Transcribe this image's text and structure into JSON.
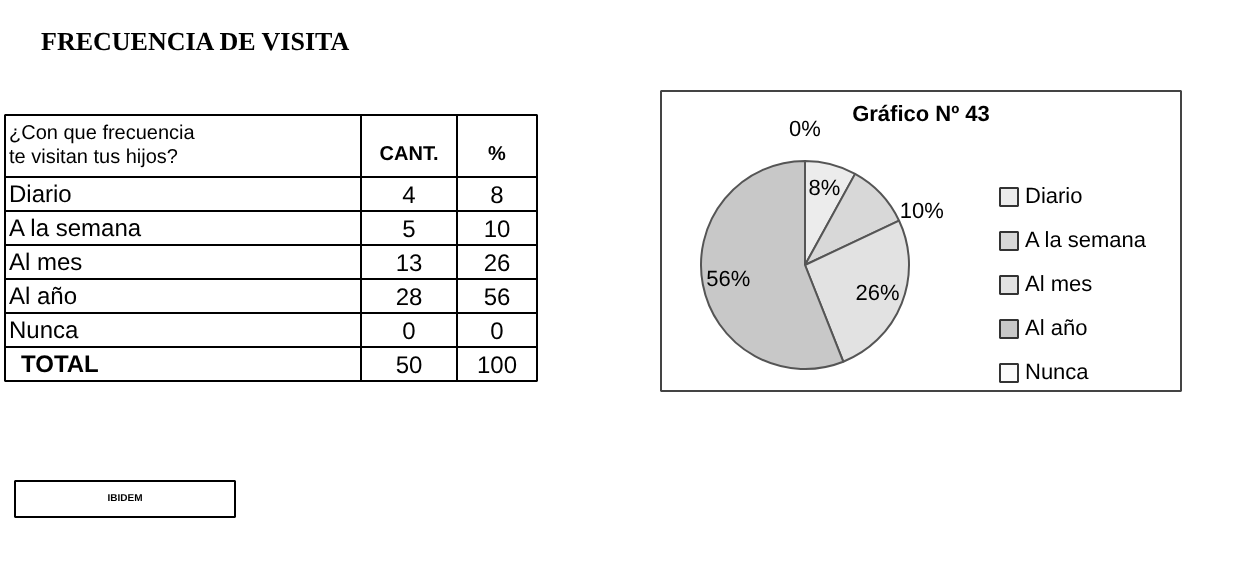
{
  "chart_data": [
    {
      "type": "other",
      "title": "FRECUENCIA DE VISITA",
      "xlabel": "¿Con que frecuencia te visitan tus hijos?",
      "categories": [
        "Diario",
        "A la semana",
        "Al mes",
        "Al año",
        "Nunca",
        "TOTAL"
      ],
      "series": [
        {
          "name": "CANT.",
          "values": [
            4,
            5,
            13,
            28,
            0,
            50
          ]
        },
        {
          "name": "%",
          "values": [
            8,
            10,
            26,
            56,
            0,
            100
          ]
        }
      ],
      "data_labels": true,
      "annotations": [
        "IBIDEM"
      ]
    },
    {
      "type": "pie",
      "title": "Gráfico Nº 43",
      "categories": [
        "Diario",
        "A la semana",
        "Al mes",
        "Al año",
        "Nunca"
      ],
      "values": [
        8,
        10,
        26,
        56,
        0
      ],
      "colors": [
        "#ececec",
        "#d8d8d8",
        "#e2e2e2",
        "#c8c8c8",
        "#fafafa"
      ],
      "value_labels": [
        "8%",
        "10%",
        "26%",
        "56%",
        "0%"
      ],
      "legend": "right"
    }
  ]
}
